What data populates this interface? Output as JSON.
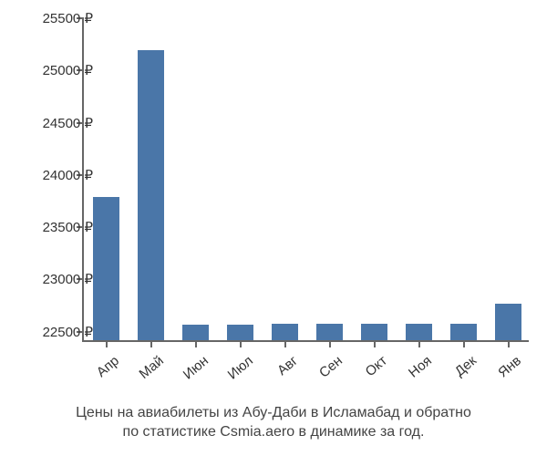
{
  "chart": {
    "type": "bar",
    "categories": [
      "Апр",
      "Май",
      "Июн",
      "Июл",
      "Авг",
      "Сен",
      "Окт",
      "Ноя",
      "Дек",
      "Янв"
    ],
    "values": [
      23775,
      25175,
      22550,
      22550,
      22560,
      22560,
      22560,
      22560,
      22560,
      22750
    ],
    "bar_color": "#4a76a8",
    "ylim": [
      22400,
      25500
    ],
    "ytick_step": 500,
    "yticks": [
      22500,
      23000,
      23500,
      24000,
      24500,
      25000,
      25500
    ],
    "currency_suffix": " ₽",
    "background_color": "#ffffff",
    "axis_color": "#666666",
    "label_color": "#333333",
    "label_fontsize": 15,
    "bar_width_ratio": 0.6,
    "x_label_rotation": -40
  },
  "caption": {
    "line1": "Цены на авиабилеты из Абу-Даби в Исламабад и обратно",
    "line2": "по статистике Csmia.aero в динамике за год.",
    "color": "#444444",
    "fontsize": 16
  }
}
